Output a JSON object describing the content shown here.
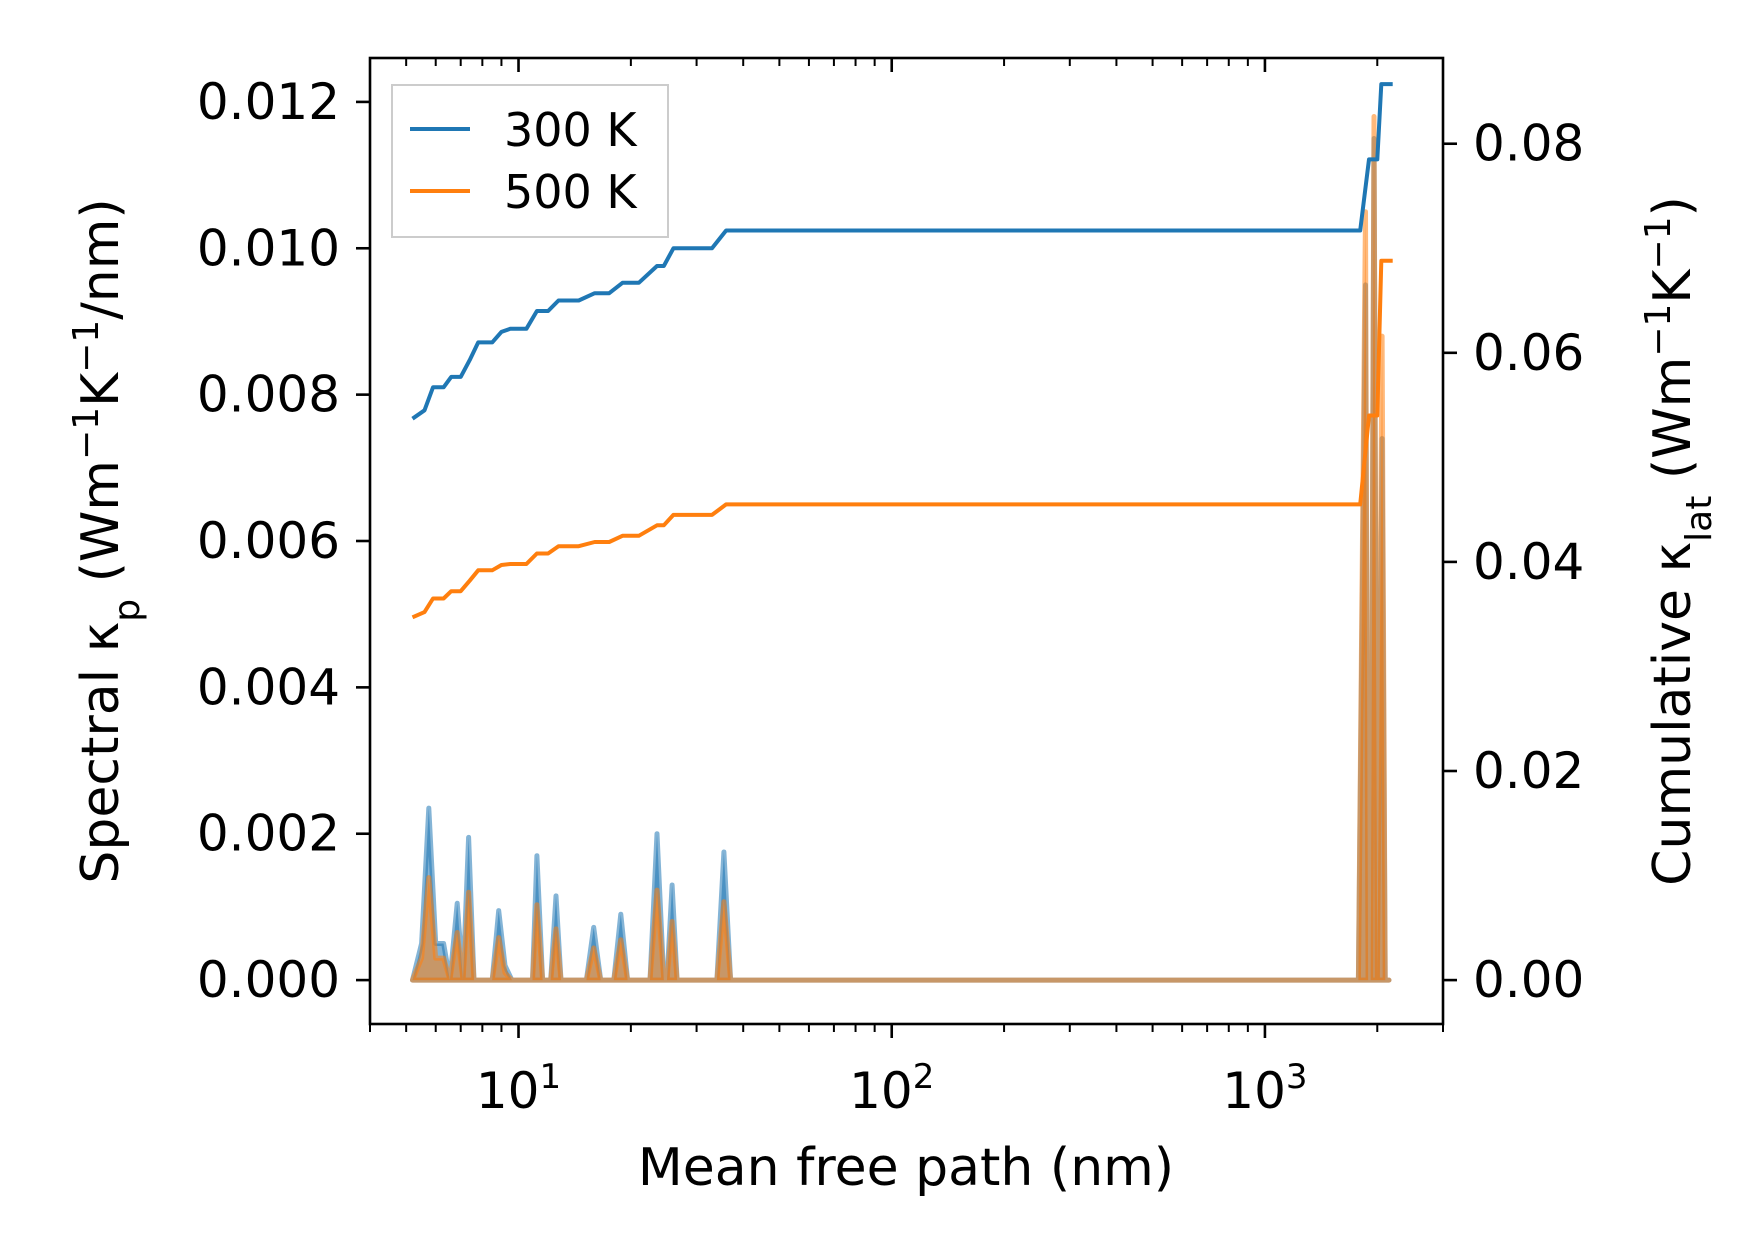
{
  "chart_data": {
    "type": "line",
    "xscale": "log",
    "xlim": [
      4,
      3000
    ],
    "ylim_left": [
      -0.0006,
      0.0126
    ],
    "ylim_right": [
      -0.0042,
      0.0882
    ],
    "xlabel": "Mean free path (nm)",
    "ylabel_left": "Spectral κp (Wm⁻¹K⁻¹/nm)",
    "ylabel_right": "Cumulative κlat (Wm⁻¹K⁻¹)",
    "y_ticks_left": [
      0.0,
      0.002,
      0.004,
      0.006,
      0.008,
      0.01,
      0.012
    ],
    "y_tick_labels_left": [
      "0.000",
      "0.002",
      "0.004",
      "0.006",
      "0.008",
      "0.010",
      "0.012"
    ],
    "y_ticks_right": [
      0.0,
      0.02,
      0.04,
      0.06,
      0.08
    ],
    "y_tick_labels_right": [
      "0.00",
      "0.02",
      "0.04",
      "0.06",
      "0.08"
    ],
    "x_ticks": [
      10,
      100,
      1000
    ],
    "x_tick_labels": [
      {
        "base": "10",
        "exp": "1"
      },
      {
        "base": "10",
        "exp": "2"
      },
      {
        "base": "10",
        "exp": "3"
      }
    ],
    "legend": {
      "position": "top-left",
      "entries": [
        {
          "label": "300 K",
          "color": "#1f77b4"
        },
        {
          "label": "500 K",
          "color": "#ff7f0e"
        }
      ]
    },
    "cumulative": [
      {
        "name": "300 K",
        "color": "#1f77b4",
        "x": [
          5.2,
          5.6,
          5.9,
          6.3,
          6.6,
          7.0,
          7.4,
          7.8,
          8.5,
          9.0,
          9.5,
          10.5,
          11.2,
          12.0,
          12.8,
          14.5,
          16.0,
          17.5,
          19.0,
          21.0,
          23.5,
          24.5,
          26.0,
          28.0,
          33.0,
          36.0,
          40.0,
          100.0,
          500.0,
          1000.0,
          1800.0,
          1900.0,
          2000.0,
          2050.0,
          2200.0
        ],
        "y": [
          0.0537,
          0.0545,
          0.0567,
          0.0567,
          0.0577,
          0.0577,
          0.0593,
          0.061,
          0.061,
          0.062,
          0.0623,
          0.0623,
          0.064,
          0.064,
          0.065,
          0.065,
          0.0657,
          0.0657,
          0.0667,
          0.0667,
          0.0683,
          0.0683,
          0.07,
          0.07,
          0.07,
          0.0717,
          0.0717,
          0.0717,
          0.0717,
          0.0717,
          0.0717,
          0.0785,
          0.0785,
          0.0857,
          0.0857
        ]
      },
      {
        "name": "500 K",
        "color": "#ff7f0e",
        "x": [
          5.2,
          5.6,
          5.9,
          6.3,
          6.6,
          7.0,
          7.4,
          7.8,
          8.5,
          9.0,
          9.5,
          10.5,
          11.2,
          12.0,
          12.8,
          14.5,
          16.0,
          17.5,
          19.0,
          21.0,
          23.5,
          24.5,
          26.0,
          28.0,
          33.0,
          36.0,
          40.0,
          100.0,
          500.0,
          1000.0,
          1800.0,
          1900.0,
          2000.0,
          2050.0,
          2200.0
        ],
        "y": [
          0.0347,
          0.0352,
          0.0365,
          0.0365,
          0.0372,
          0.0372,
          0.0382,
          0.0392,
          0.0392,
          0.0397,
          0.0398,
          0.0398,
          0.0408,
          0.0408,
          0.0415,
          0.0415,
          0.0419,
          0.0419,
          0.0425,
          0.0425,
          0.0435,
          0.0435,
          0.0445,
          0.0445,
          0.0445,
          0.0455,
          0.0455,
          0.0455,
          0.0455,
          0.0455,
          0.0455,
          0.054,
          0.054,
          0.0688,
          0.0688
        ]
      }
    ],
    "spectral": [
      {
        "name": "300 K",
        "color": "#1f77b4",
        "x": [
          5.2,
          5.5,
          5.75,
          6.0,
          6.3,
          6.55,
          6.85,
          7.1,
          7.35,
          7.6,
          8.0,
          8.5,
          8.85,
          9.2,
          9.6,
          10.4,
          10.9,
          11.2,
          11.6,
          12.2,
          12.6,
          13.0,
          15.2,
          15.9,
          16.6,
          18.0,
          18.8,
          19.6,
          22.5,
          23.5,
          24.5,
          25.0,
          25.8,
          26.6,
          34.0,
          35.5,
          37.0,
          1780.0,
          1860.0,
          1890.0,
          1920.0,
          1960.0,
          2000.0,
          2060.0,
          2100.0,
          2150.0
        ],
        "y": [
          0.0,
          0.0005,
          0.00235,
          0.0005,
          0.0005,
          0.0,
          0.00105,
          0.0,
          0.00195,
          0.0,
          0.0,
          0.0,
          0.00095,
          0.0002,
          0.0,
          0.0,
          0.0,
          0.0017,
          0.0,
          0.0,
          0.00115,
          0.0,
          0.0,
          0.00072,
          0.0,
          0.0,
          0.0009,
          0.0,
          0.0,
          0.002,
          0.0,
          0.0,
          0.0013,
          0.0,
          0.0,
          0.00175,
          0.0,
          0.0,
          0.0095,
          0.0,
          0.0,
          0.0115,
          0.0,
          0.0074,
          0.0,
          0.0
        ]
      },
      {
        "name": "500 K",
        "color": "#ff7f0e",
        "x": [
          5.2,
          5.5,
          5.75,
          6.0,
          6.3,
          6.55,
          6.85,
          7.1,
          7.35,
          7.6,
          8.0,
          8.5,
          8.85,
          9.2,
          9.6,
          10.4,
          10.9,
          11.2,
          11.6,
          12.2,
          12.6,
          13.0,
          15.2,
          15.9,
          16.6,
          18.0,
          18.8,
          19.6,
          22.5,
          23.5,
          24.5,
          25.0,
          25.8,
          26.6,
          34.0,
          35.5,
          37.0,
          1780.0,
          1860.0,
          1890.0,
          1920.0,
          1960.0,
          2000.0,
          2060.0,
          2100.0,
          2150.0
        ],
        "y": [
          0.0,
          0.0003,
          0.0014,
          0.0003,
          0.0003,
          0.0,
          0.00065,
          0.0,
          0.0012,
          0.0,
          0.0,
          0.0,
          0.00058,
          0.0001,
          0.0,
          0.0,
          0.0,
          0.00103,
          0.0,
          0.0,
          0.0007,
          0.0,
          0.0,
          0.00044,
          0.0,
          0.0,
          0.00055,
          0.0,
          0.0,
          0.00123,
          0.0,
          0.0,
          0.0008,
          0.0,
          0.0,
          0.00107,
          0.0,
          0.0,
          0.0105,
          0.0,
          0.0,
          0.0118,
          0.0,
          0.0088,
          0.0,
          0.0
        ]
      }
    ]
  }
}
